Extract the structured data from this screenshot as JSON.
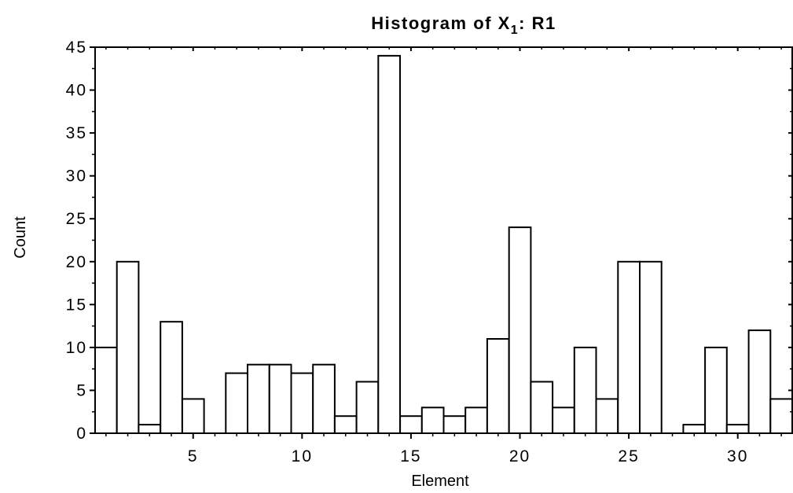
{
  "chart_data": {
    "type": "bar",
    "title_main": "Histogram of X",
    "title_subscript": "1",
    "title_suffix": ": R1",
    "xlabel": "Element",
    "ylabel": "Count",
    "x": [
      1,
      2,
      3,
      4,
      5,
      6,
      7,
      8,
      9,
      10,
      11,
      12,
      13,
      14,
      15,
      16,
      17,
      18,
      19,
      20,
      21,
      22,
      23,
      24,
      25,
      26,
      27,
      28,
      29,
      30,
      31,
      32
    ],
    "values": [
      10,
      20,
      1,
      13,
      4,
      0,
      7,
      8,
      8,
      7,
      8,
      2,
      6,
      44,
      2,
      3,
      2,
      3,
      11,
      24,
      6,
      3,
      10,
      4,
      20,
      20,
      0,
      1,
      10,
      1,
      12,
      4
    ],
    "xlim": [
      0.5,
      32.5
    ],
    "ylim": [
      0,
      45
    ],
    "xticks": [
      5,
      10,
      15,
      20,
      25,
      30
    ],
    "xtick_labels": [
      "5",
      "10",
      "15",
      "20",
      "25",
      "30"
    ],
    "yticks": [
      0,
      5,
      10,
      15,
      20,
      25,
      30,
      35,
      40,
      45
    ],
    "ytick_labels": [
      "0",
      "5",
      "10",
      "15",
      "20",
      "25",
      "30",
      "35",
      "40",
      "45"
    ],
    "grid": false,
    "bar_fill": "#ffffff",
    "bar_stroke": "#000000"
  }
}
